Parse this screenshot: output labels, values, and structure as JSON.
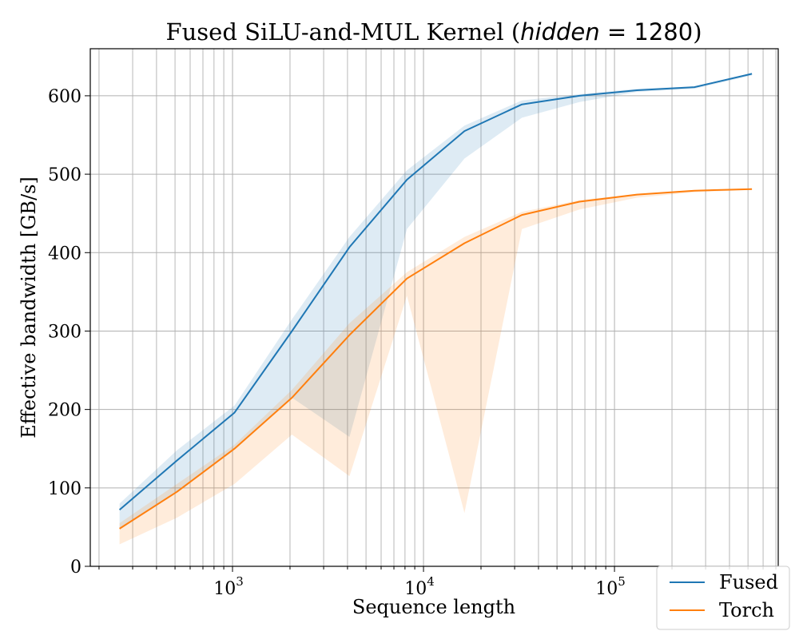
{
  "chart_data": {
    "type": "line",
    "title": {
      "prefix": "Fused SiLU-and-MUL Kernel (",
      "var": "hidden",
      "equals": " = 1280",
      "suffix": ")"
    },
    "xlabel": "Sequence length",
    "ylabel": "Effective bandwidth [GB/s]",
    "xscale": "log",
    "xlim": [
      180,
      720000
    ],
    "ylim": [
      0,
      660
    ],
    "grid": true,
    "legend_position": "bottom-right",
    "y_ticks": [
      {
        "value": 0,
        "label": "0"
      },
      {
        "value": 100,
        "label": "100"
      },
      {
        "value": 200,
        "label": "200"
      },
      {
        "value": 300,
        "label": "300"
      },
      {
        "value": 400,
        "label": "400"
      },
      {
        "value": 500,
        "label": "500"
      },
      {
        "value": 600,
        "label": "600"
      }
    ],
    "x_major_ticks": [
      {
        "value": 1000,
        "base": "10",
        "exp": "3"
      },
      {
        "value": 10000,
        "base": "10",
        "exp": "4"
      },
      {
        "value": 100000,
        "base": "10",
        "exp": "5"
      }
    ],
    "x": [
      256,
      512,
      1024,
      2048,
      4096,
      8192,
      16384,
      32768,
      65536,
      131072,
      262144,
      524288
    ],
    "series": [
      {
        "name": "Fused",
        "color": "#1f77b4",
        "values": [
          72,
          135,
          196,
          300,
          407,
          493,
          555,
          589,
          600,
          607,
          611,
          628
        ],
        "band_low": [
          48,
          95,
          150,
          215,
          165,
          430,
          520,
          572,
          592,
          605,
          609,
          626
        ],
        "band_high": [
          80,
          148,
          205,
          315,
          420,
          505,
          562,
          594,
          602,
          609,
          612,
          629
        ]
      },
      {
        "name": "Torch",
        "color": "#ff7f0e",
        "values": [
          48,
          95,
          150,
          215,
          295,
          367,
          412,
          448,
          465,
          474,
          479,
          481
        ],
        "band_low": [
          28,
          62,
          105,
          168,
          115,
          345,
          68,
          430,
          455,
          470,
          477,
          480
        ],
        "band_high": [
          55,
          105,
          155,
          225,
          310,
          375,
          420,
          452,
          467,
          475,
          479,
          482
        ]
      }
    ]
  }
}
